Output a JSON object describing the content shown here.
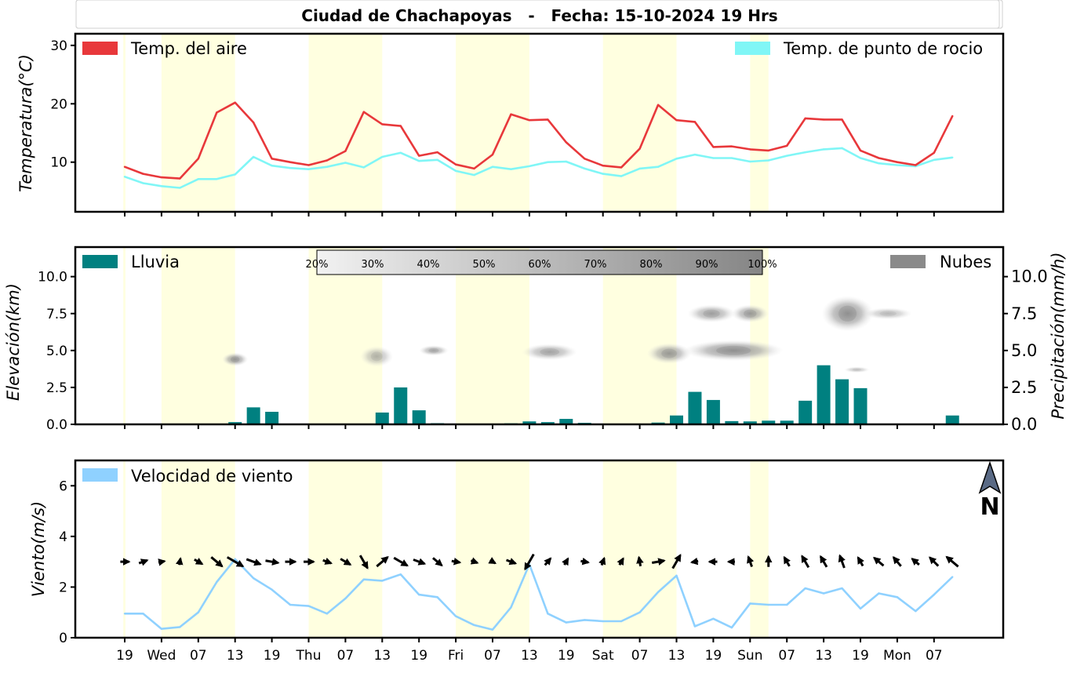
{
  "title": "Ciudad de Chachapoyas   -   Fecha: 15-10-2024 19 Hrs",
  "colors": {
    "air_temp": "#e8383b",
    "dew_temp": "#80f6f6",
    "rain": "#008080",
    "cloud": "#8a8a8a",
    "wind": "#8fd1ff",
    "daytime_band": "#ffffe0"
  },
  "x_tick_labels": [
    "19",
    "Wed",
    "07",
    "13",
    "19",
    "Thu",
    "07",
    "13",
    "19",
    "Fri",
    "07",
    "13",
    "19",
    "Sat",
    "07",
    "13",
    "19",
    "Sun",
    "07",
    "13",
    "19",
    "Mon",
    "07"
  ],
  "daytime_bands": [
    [
      -0.08,
      0.04
    ],
    [
      2,
      6
    ],
    [
      10,
      14
    ],
    [
      18,
      22
    ],
    [
      26,
      30
    ],
    [
      34,
      35
    ]
  ],
  "chart_data": [
    {
      "type": "line",
      "name": "temperature",
      "ylabel": "Temperatura(°C)",
      "ylim": [
        1.5,
        32
      ],
      "yticks": [
        10,
        20,
        30
      ],
      "x_index": "3-hour step index, 0 = 19 Hrs Tue",
      "series": [
        {
          "name": "Temp. del aire",
          "color": "#e8383b",
          "values": [
            9.2,
            8.0,
            7.4,
            7.2,
            10.6,
            18.5,
            20.2,
            16.8,
            10.6,
            10.0,
            9.5,
            10.3,
            11.9,
            18.6,
            16.5,
            16.2,
            11.1,
            11.7,
            9.6,
            8.9,
            11.3,
            18.2,
            17.2,
            17.3,
            13.4,
            10.6,
            9.4,
            9.1,
            12.3,
            19.8,
            17.2,
            16.9,
            12.6,
            12.7,
            12.2,
            12.0,
            12.8,
            17.5,
            17.3,
            17.3,
            12.0,
            10.7,
            10.0,
            9.5,
            11.6,
            17.9
          ]
        },
        {
          "name": "Temp. de punto de rocio",
          "color": "#80f6f6",
          "values": [
            7.5,
            6.4,
            5.9,
            5.6,
            7.1,
            7.1,
            7.9,
            10.9,
            9.4,
            9.0,
            8.8,
            9.2,
            9.9,
            9.1,
            10.9,
            11.6,
            10.2,
            10.4,
            8.5,
            7.8,
            9.2,
            8.8,
            9.3,
            10.0,
            10.1,
            8.9,
            8.0,
            7.6,
            8.9,
            9.2,
            10.6,
            11.3,
            10.7,
            10.7,
            10.1,
            10.3,
            11.1,
            11.7,
            12.2,
            12.4,
            10.7,
            9.8,
            9.5,
            9.3,
            10.4,
            10.8
          ]
        }
      ]
    },
    {
      "type": "bar",
      "name": "precipitation",
      "ylabel_left": "Elevación(km)",
      "ylabel_right": "Precipitación(mm/h)",
      "ylim": [
        0,
        12
      ],
      "yticks": [
        "0.0",
        "2.5",
        "5.0",
        "7.5",
        "10.0"
      ],
      "series": [
        {
          "name": "Lluvia",
          "color": "#008080",
          "values": [
            0,
            0,
            0,
            0,
            0,
            0.02,
            0.15,
            1.15,
            0.85,
            0,
            0,
            0.02,
            0.05,
            0.02,
            0.8,
            2.5,
            0.95,
            0.08,
            0.03,
            0,
            0,
            0.07,
            0.2,
            0.15,
            0.37,
            0.1,
            0,
            0,
            0,
            0.12,
            0.6,
            2.2,
            1.65,
            0.22,
            0.2,
            0.25,
            0.25,
            1.6,
            4.0,
            3.05,
            2.45,
            0,
            0,
            0,
            0.05,
            0.6
          ]
        }
      ],
      "clouds": {
        "name": "Nubes",
        "colorbar_labels": [
          "20%",
          "30%",
          "40%",
          "50%",
          "60%",
          "70%",
          "80%",
          "90%",
          "100%"
        ],
        "areas": [
          {
            "x": 6.0,
            "elev_km": 4.4,
            "half_width": 0.7,
            "half_height": 0.45,
            "density": 0.55
          },
          {
            "x": 13.7,
            "elev_km": 4.6,
            "half_width": 0.9,
            "half_height": 0.7,
            "density": 0.3
          },
          {
            "x": 16.8,
            "elev_km": 5.0,
            "half_width": 0.8,
            "half_height": 0.35,
            "density": 0.4
          },
          {
            "x": 23.1,
            "elev_km": 4.9,
            "half_width": 1.5,
            "half_height": 0.55,
            "density": 0.4
          },
          {
            "x": 29.6,
            "elev_km": 4.8,
            "half_width": 1.2,
            "half_height": 0.7,
            "density": 0.5
          },
          {
            "x": 33.1,
            "elev_km": 5.0,
            "half_width": 2.7,
            "half_height": 0.7,
            "density": 0.6
          },
          {
            "x": 31.9,
            "elev_km": 7.5,
            "half_width": 1.3,
            "half_height": 0.6,
            "density": 0.45
          },
          {
            "x": 34.0,
            "elev_km": 7.5,
            "half_width": 1.0,
            "half_height": 0.6,
            "density": 0.5
          },
          {
            "x": 39.3,
            "elev_km": 7.5,
            "half_width": 1.4,
            "half_height": 1.2,
            "density": 0.6
          },
          {
            "x": 41.5,
            "elev_km": 7.5,
            "half_width": 1.3,
            "half_height": 0.4,
            "density": 0.25
          },
          {
            "x": 39.8,
            "elev_km": 3.7,
            "half_width": 0.7,
            "half_height": 0.2,
            "density": 0.2
          }
        ]
      }
    },
    {
      "type": "line",
      "name": "wind",
      "ylabel": "Viento(m/s)",
      "ylim": [
        0,
        7
      ],
      "yticks": [
        0,
        2,
        4,
        6
      ],
      "series": [
        {
          "name": "Velocidad de viento",
          "color": "#8fd1ff",
          "values": [
            0.95,
            0.95,
            0.35,
            0.42,
            1.0,
            2.2,
            3.1,
            2.35,
            1.9,
            1.3,
            1.25,
            0.95,
            1.55,
            2.3,
            2.25,
            2.5,
            1.7,
            1.6,
            0.85,
            0.5,
            0.32,
            1.2,
            2.9,
            0.95,
            0.6,
            0.7,
            0.65,
            0.65,
            1.0,
            1.8,
            2.45,
            0.45,
            0.75,
            0.4,
            1.35,
            1.3,
            1.3,
            1.95,
            1.75,
            1.95,
            1.15,
            1.75,
            1.6,
            1.05,
            1.7,
            2.4
          ]
        }
      ],
      "wind_direction_deg_from": [
        270,
        250,
        260,
        190,
        300,
        310,
        300,
        290,
        280,
        270,
        270,
        290,
        300,
        330,
        230,
        300,
        290,
        310,
        280,
        290,
        300,
        290,
        30,
        220,
        210,
        280,
        200,
        210,
        170,
        260,
        210,
        80,
        90,
        90,
        160,
        180,
        150,
        150,
        150,
        160,
        150,
        130,
        140,
        130,
        135,
        130
      ],
      "north_label": "N"
    }
  ]
}
